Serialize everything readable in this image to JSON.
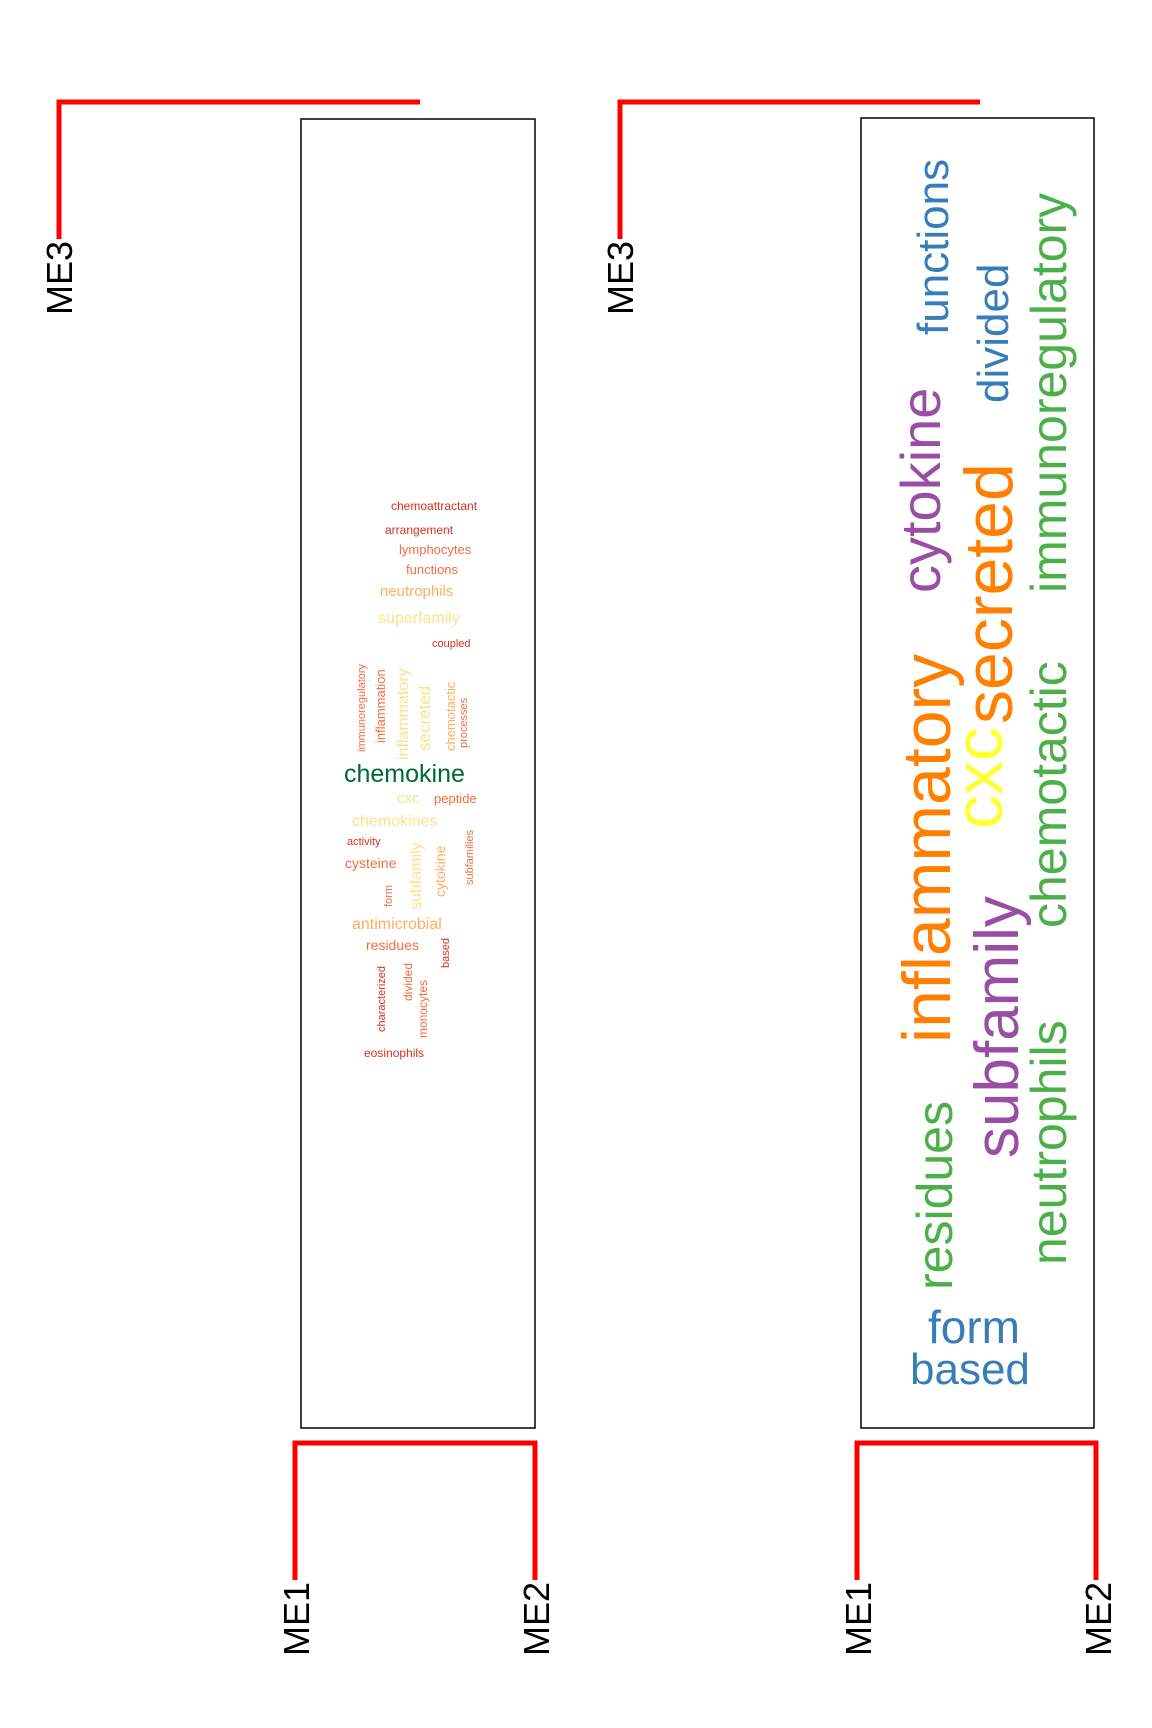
{
  "colors": {
    "dendrogram_line": "#ff0000",
    "panel_border": "#000000"
  },
  "panels": [
    {
      "leaves": {
        "top": "ME3",
        "bottom_left": "ME1",
        "bottom_right": "ME2"
      },
      "words": [
        {
          "text": "chemoattractant",
          "color": "#d7301f"
        },
        {
          "text": "arrangement",
          "color": "#d7301f"
        },
        {
          "text": "lymphocytes",
          "color": "#f46d43"
        },
        {
          "text": "functions",
          "color": "#f46d43"
        },
        {
          "text": "neutrophils",
          "color": "#fdae61"
        },
        {
          "text": "superfamily",
          "color": "#fee08b"
        },
        {
          "text": "coupled",
          "color": "#d7301f"
        },
        {
          "text": "immunoregulatory",
          "color": "#f46d43"
        },
        {
          "text": "inflammation",
          "color": "#f46d43"
        },
        {
          "text": "inflammatory",
          "color": "#fee08b"
        },
        {
          "text": "secreted",
          "color": "#fee08b"
        },
        {
          "text": "chemotactic",
          "color": "#fdae61"
        },
        {
          "text": "processes",
          "color": "#f46d43"
        },
        {
          "text": "chemokine",
          "color": "#006837"
        },
        {
          "text": "cxc",
          "color": "#d9ef8b"
        },
        {
          "text": "peptide",
          "color": "#f46d43"
        },
        {
          "text": "chemokines",
          "color": "#fee08b"
        },
        {
          "text": "activity",
          "color": "#d7301f"
        },
        {
          "text": "subfamilies",
          "color": "#f46d43"
        },
        {
          "text": "subfamily",
          "color": "#fee08b"
        },
        {
          "text": "cytokine",
          "color": "#fdae61"
        },
        {
          "text": "cysteine",
          "color": "#f46d43"
        },
        {
          "text": "form",
          "color": "#f46d43"
        },
        {
          "text": "antimicrobial",
          "color": "#fdae61"
        },
        {
          "text": "residues",
          "color": "#f46d43"
        },
        {
          "text": "based",
          "color": "#d7301f"
        },
        {
          "text": "characterized",
          "color": "#d7301f"
        },
        {
          "text": "divided",
          "color": "#f46d43"
        },
        {
          "text": "monocytes",
          "color": "#f46d43"
        },
        {
          "text": "eosinophils",
          "color": "#d7301f"
        }
      ]
    },
    {
      "leaves": {
        "top": "ME3",
        "bottom_left": "ME1",
        "bottom_right": "ME2"
      },
      "words": [
        {
          "text": "functions",
          "color": "#377eb8"
        },
        {
          "text": "immunoregulatory",
          "color": "#4daf4a"
        },
        {
          "text": "divided",
          "color": "#377eb8"
        },
        {
          "text": "cytokine",
          "color": "#984ea3"
        },
        {
          "text": "secreted",
          "color": "#ff7f00"
        },
        {
          "text": "inflammatory",
          "color": "#ff7f00"
        },
        {
          "text": "cxc",
          "color": "#ffff33"
        },
        {
          "text": "chemotactic",
          "color": "#4daf4a"
        },
        {
          "text": "subfamily",
          "color": "#984ea3"
        },
        {
          "text": "neutrophils",
          "color": "#4daf4a"
        },
        {
          "text": "residues",
          "color": "#4daf4a"
        },
        {
          "text": "form",
          "color": "#377eb8"
        },
        {
          "text": "based",
          "color": "#377eb8"
        }
      ]
    }
  ]
}
